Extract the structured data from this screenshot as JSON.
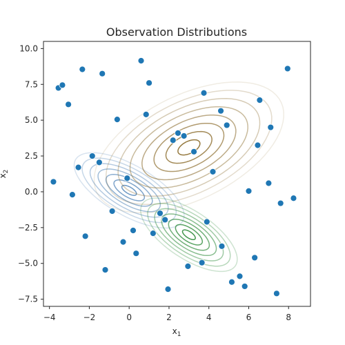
{
  "chart_data": {
    "type": "scatter",
    "title": "Observation Distributions",
    "xlabel": {
      "base": "x",
      "sub": "1"
    },
    "ylabel": {
      "base": "x",
      "sub": "2"
    },
    "xlim": [
      -4.3,
      9.1
    ],
    "ylim": [
      -8.0,
      10.5
    ],
    "x_ticks": [
      -4,
      -2,
      0,
      2,
      4,
      6,
      8
    ],
    "x_tick_labels": [
      "−4",
      "−2",
      "0",
      "2",
      "4",
      "6",
      "8"
    ],
    "y_ticks": [
      10.0,
      7.5,
      5.0,
      2.5,
      0.0,
      -2.5,
      -5.0,
      -7.5
    ],
    "y_tick_labels": [
      "10.0",
      "7.5",
      "5.0",
      "2.5",
      "0.0",
      "−2.5",
      "−5.0",
      "−7.5"
    ],
    "grid": false,
    "point_color": "#1f77b4",
    "points": [
      {
        "x": -3.55,
        "y": 7.25
      },
      {
        "x": -3.35,
        "y": 7.45
      },
      {
        "x": -2.35,
        "y": 8.55
      },
      {
        "x": -1.35,
        "y": 8.25
      },
      {
        "x": 0.6,
        "y": 9.15
      },
      {
        "x": 7.95,
        "y": 8.6
      },
      {
        "x": 1.0,
        "y": 7.6
      },
      {
        "x": -3.05,
        "y": 6.1
      },
      {
        "x": 3.75,
        "y": 6.9
      },
      {
        "x": 6.55,
        "y": 6.4
      },
      {
        "x": -0.6,
        "y": 5.05
      },
      {
        "x": 0.85,
        "y": 5.4
      },
      {
        "x": 4.6,
        "y": 5.65
      },
      {
        "x": 4.9,
        "y": 4.65
      },
      {
        "x": 7.1,
        "y": 4.5
      },
      {
        "x": 2.45,
        "y": 4.1
      },
      {
        "x": 2.75,
        "y": 3.9
      },
      {
        "x": 2.2,
        "y": 3.6
      },
      {
        "x": 6.45,
        "y": 3.25
      },
      {
        "x": 3.25,
        "y": 2.8
      },
      {
        "x": -1.85,
        "y": 2.5
      },
      {
        "x": -1.5,
        "y": 2.05
      },
      {
        "x": -2.55,
        "y": 1.7
      },
      {
        "x": 4.2,
        "y": 1.4
      },
      {
        "x": -3.8,
        "y": 0.7
      },
      {
        "x": -0.1,
        "y": 0.95
      },
      {
        "x": 7.0,
        "y": 0.6
      },
      {
        "x": 6.0,
        "y": 0.05
      },
      {
        "x": -2.85,
        "y": -0.2
      },
      {
        "x": 8.25,
        "y": -0.45
      },
      {
        "x": 7.6,
        "y": -0.8
      },
      {
        "x": -0.85,
        "y": -1.35
      },
      {
        "x": 1.55,
        "y": -1.5
      },
      {
        "x": 1.8,
        "y": -1.95
      },
      {
        "x": 3.9,
        "y": -2.1
      },
      {
        "x": 0.2,
        "y": -2.7
      },
      {
        "x": 1.2,
        "y": -2.9
      },
      {
        "x": -2.2,
        "y": -3.1
      },
      {
        "x": -0.3,
        "y": -3.5
      },
      {
        "x": 4.65,
        "y": -3.8
      },
      {
        "x": 0.35,
        "y": -4.3
      },
      {
        "x": 6.3,
        "y": -4.6
      },
      {
        "x": 3.65,
        "y": -4.95
      },
      {
        "x": 2.95,
        "y": -5.2
      },
      {
        "x": -1.2,
        "y": -5.45
      },
      {
        "x": 5.55,
        "y": -5.9
      },
      {
        "x": 5.15,
        "y": -6.3
      },
      {
        "x": 5.8,
        "y": -6.6
      },
      {
        "x": 1.95,
        "y": -6.8
      },
      {
        "x": 7.4,
        "y": -7.1
      }
    ],
    "contours": [
      {
        "name": "",
        "mean": [
          0.0,
          0.1
        ],
        "cov": [
          [
            1.1,
            -0.7
          ],
          [
            -0.7,
            1.0
          ]
        ],
        "color": "#5b8cbd",
        "levels": 7
      },
      {
        "name": "",
        "mean": [
          3.0,
          3.1
        ],
        "cov": [
          [
            2.5,
            1.2
          ],
          [
            1.2,
            2.3
          ]
        ],
        "color": "#8a6a2a",
        "levels": 8
      },
      {
        "name": "",
        "mean": [
          3.0,
          -3.0
        ],
        "cov": [
          [
            0.85,
            -0.6
          ],
          [
            -0.6,
            0.95
          ]
        ],
        "color": "#2e8b3a",
        "levels": 7
      }
    ]
  }
}
